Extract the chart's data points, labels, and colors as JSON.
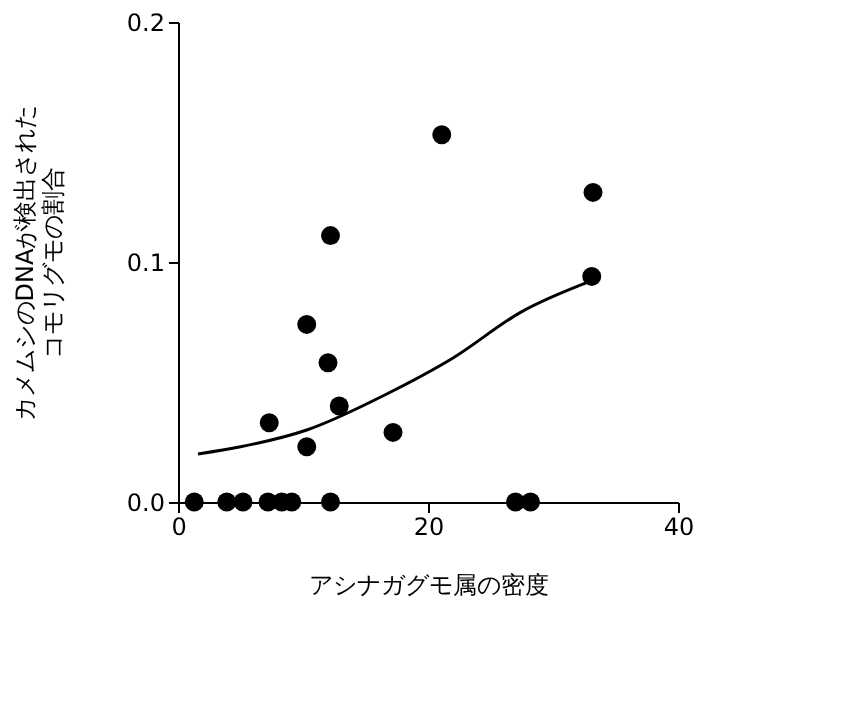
{
  "chart_data": {
    "type": "scatter",
    "xlabel": "アシナガグモ属の密度",
    "ylabel": "カメムシのDNAが検出されたコモリグモの割合",
    "xlim": [
      0,
      40
    ],
    "xticks": [
      0,
      20,
      40
    ],
    "ylim": [
      0,
      0.2
    ],
    "yticks": [
      {
        "value": 0,
        "label": "0.0"
      },
      {
        "value": 0.1,
        "label": "0.1"
      },
      {
        "value": 0.2,
        "label": "0.2"
      }
    ],
    "grid": false,
    "series": [
      {
        "type": "scatter",
        "marker": "circle",
        "color": "#000000",
        "x": [
          1.3,
          3.9,
          5.2,
          7.2,
          8.3,
          9.1,
          12.2,
          27.0,
          28.2,
          7.3,
          10.3,
          10.3,
          12.2,
          12.0,
          12.9,
          17.2,
          21.1,
          33.2,
          33.1
        ],
        "values": [
          0,
          0,
          0,
          0,
          0,
          0,
          0,
          0,
          0,
          0.033,
          0.074,
          0.023,
          0.111,
          0.058,
          0.04,
          0.029,
          0.153,
          0.129,
          0.094
        ]
      },
      {
        "type": "line",
        "line_style": "solid",
        "color": "#000000",
        "x": [
          1.6,
          5,
          10.3,
          16.7,
          22.0,
          27.4,
          33.0
        ],
        "values": [
          0.02,
          0.023,
          0.03,
          0.045,
          0.06,
          0.079,
          0.092
        ]
      }
    ]
  }
}
